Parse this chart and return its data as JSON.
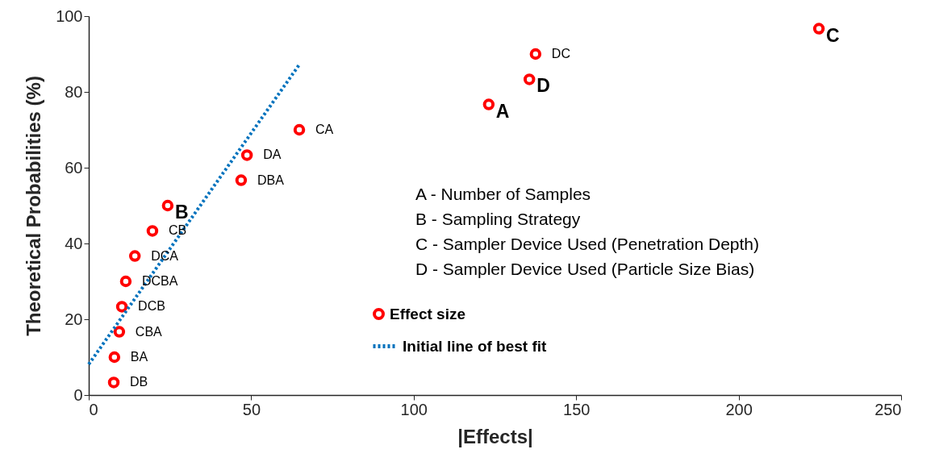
{
  "chart_data": {
    "type": "scatter",
    "xlabel": "|Effects|",
    "ylabel": "Theoretical Probabilities (%)",
    "xlim": [
      0,
      250
    ],
    "ylim": [
      0,
      100
    ],
    "xticks": [
      0,
      50,
      100,
      150,
      200,
      250
    ],
    "yticks": [
      0,
      20,
      40,
      60,
      80,
      100
    ],
    "grid": false,
    "legend": "right",
    "series": [
      {
        "name": "Effect size",
        "marker": "circle",
        "color": "#ff0000",
        "x": [
          7.7,
          7.9,
          9.4,
          10.2,
          11.4,
          14.2,
          19.6,
          24.3,
          46.9,
          48.7,
          64.8,
          123.1,
          135.6,
          137.5,
          224.7
        ],
        "values": [
          3.3,
          10,
          16.7,
          23.3,
          30,
          36.7,
          43.3,
          50,
          56.7,
          63.3,
          70,
          76.7,
          83.3,
          90,
          96.7
        ]
      },
      {
        "name": "Initial line of best fit",
        "type": "line",
        "color": "#0072bd",
        "line_style": "dotted",
        "x": [
          0,
          64.8
        ],
        "values": [
          8.1,
          87.2
        ]
      }
    ],
    "annotations": [
      {
        "text": "DB",
        "x": 7.7,
        "y": 3.33
      },
      {
        "text": "BA",
        "x": 7.9,
        "y": 10
      },
      {
        "text": "CBA",
        "x": 9.4,
        "y": 16.67
      },
      {
        "text": "DCB",
        "x": 10.2,
        "y": 23.33
      },
      {
        "text": "DCBA",
        "x": 11.4,
        "y": 30
      },
      {
        "text": "DCA",
        "x": 14.2,
        "y": 36.67
      },
      {
        "text": "CB",
        "x": 19.6,
        "y": 43.33
      },
      {
        "text": "B",
        "x": 24.3,
        "y": 50
      },
      {
        "text": "DBA",
        "x": 46.9,
        "y": 56.67
      },
      {
        "text": "DA",
        "x": 48.7,
        "y": 63.33
      },
      {
        "text": "CA",
        "x": 64.8,
        "y": 70
      },
      {
        "text": "A",
        "x": 123.1,
        "y": 76.67
      },
      {
        "text": "D",
        "x": 135.6,
        "y": 83.33
      },
      {
        "text": "DC",
        "x": 137.5,
        "y": 90
      },
      {
        "text": "C",
        "x": 224.7,
        "y": 96.67
      },
      "A - Number of Samples",
      "B - Sampling Strategy",
      "C - Sampler Device Used (Penetration Depth)",
      "D - Sampler Device Used (Particle Size Bias)"
    ]
  }
}
